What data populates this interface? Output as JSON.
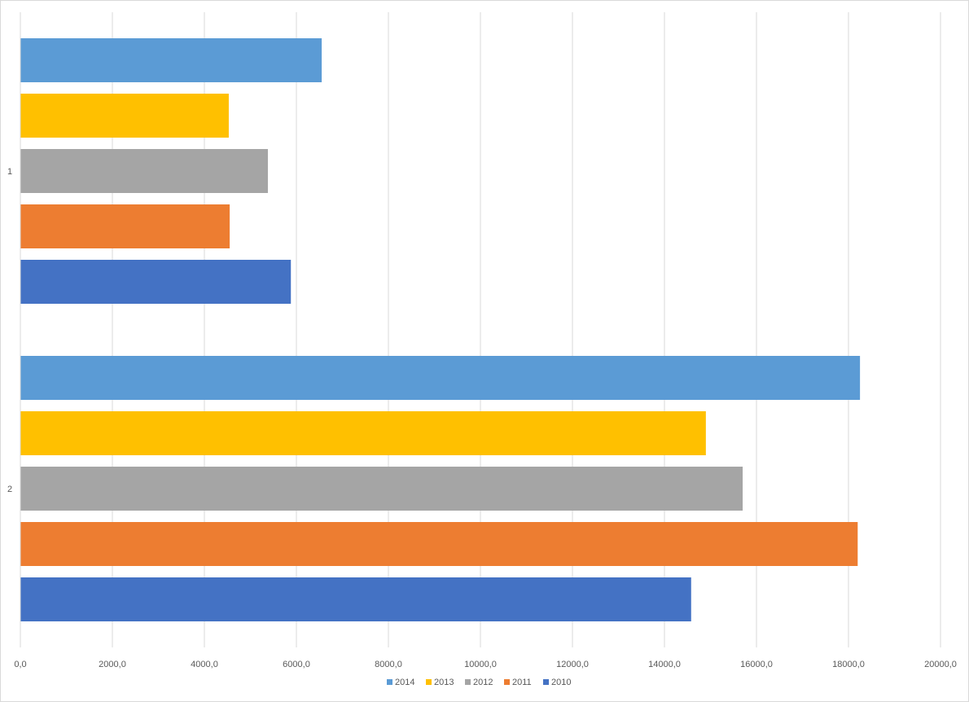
{
  "chart_data": {
    "type": "bar",
    "orientation": "horizontal",
    "title": "",
    "xlabel": "",
    "ylabel": "",
    "categories": [
      "1",
      "2"
    ],
    "xlim": [
      0,
      20000
    ],
    "x_ticks": [
      "0,0",
      "2000,0",
      "4000,0",
      "6000,0",
      "8000,0",
      "10000,0",
      "12000,0",
      "14000,0",
      "16000,0",
      "18000,0",
      "20000,0"
    ],
    "grid": "vertical",
    "legend_position": "bottom",
    "series": [
      {
        "name": "2014",
        "color": "#5b9bd5",
        "values": [
          6550,
          18250
        ]
      },
      {
        "name": "2013",
        "color": "#ffc000",
        "values": [
          4530,
          14900
        ]
      },
      {
        "name": "2012",
        "color": "#a5a5a5",
        "values": [
          5380,
          15700
        ]
      },
      {
        "name": "2011",
        "color": "#ed7d31",
        "values": [
          4550,
          18200
        ]
      },
      {
        "name": "2010",
        "color": "#4472c4",
        "values": [
          5880,
          14580
        ]
      }
    ]
  }
}
